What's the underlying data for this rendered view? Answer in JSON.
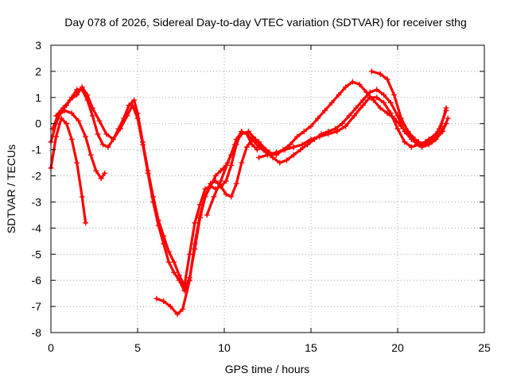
{
  "chart_data": {
    "type": "scatter",
    "title": "Day 078 of 2026, Sidereal Day-to-day VTEC variation (SDTVAR) for receiver sthg",
    "xlabel": "GPS time / hours",
    "ylabel": "SDTVAR / TECUs",
    "xlim": [
      0,
      25
    ],
    "ylim": [
      -8,
      3
    ],
    "xticks": [
      "0",
      "5",
      "10",
      "15",
      "20",
      "25"
    ],
    "yticks": [
      "-8",
      "-7",
      "-6",
      "-5",
      "-4",
      "-3",
      "-2",
      "-1",
      "0",
      "1",
      "2",
      "3"
    ],
    "grid": true,
    "marker_color": "#ff0000",
    "series": [
      {
        "x": [
          0.0,
          0.3,
          0.6,
          0.9,
          1.2,
          1.5,
          1.8,
          2.0
        ],
        "y": [
          -1.7,
          -0.5,
          0.2,
          0.0,
          -0.6,
          -1.5,
          -2.8,
          -3.8
        ]
      },
      {
        "x": [
          0.1,
          0.4,
          0.8,
          1.2,
          1.6,
          2.0,
          2.3,
          2.6,
          2.9,
          3.1
        ],
        "y": [
          -0.2,
          0.3,
          0.5,
          0.4,
          0.1,
          -0.5,
          -1.2,
          -1.8,
          -2.1,
          -1.9
        ]
      },
      {
        "x": [
          0.0,
          0.3,
          0.6,
          0.9,
          1.2,
          1.5,
          1.8,
          2.1,
          2.4,
          2.7,
          3.0,
          3.3,
          3.6,
          3.9,
          4.2,
          4.5,
          4.8,
          5.0,
          5.3,
          5.6,
          5.9,
          6.2,
          6.5,
          6.8,
          7.1,
          7.4,
          7.7,
          8.0,
          8.3,
          8.6,
          8.9,
          9.2,
          9.5,
          9.8,
          10.1,
          10.4,
          10.7,
          11.0,
          11.3,
          11.6,
          11.9
        ],
        "y": [
          -0.7,
          0.0,
          0.5,
          0.7,
          1.0,
          1.3,
          1.3,
          0.9,
          0.3,
          -0.4,
          -0.8,
          -0.9,
          -0.6,
          -0.2,
          0.2,
          0.7,
          0.9,
          0.4,
          -0.7,
          -1.8,
          -2.8,
          -3.7,
          -4.3,
          -4.9,
          -5.3,
          -5.8,
          -6.2,
          -5.0,
          -3.8,
          -3.1,
          -2.5,
          -2.4,
          -2.5,
          -2.4,
          -2.2,
          -1.6,
          -0.8,
          -0.3,
          -0.4,
          -0.8,
          -1.0
        ]
      },
      {
        "x": [
          0.3,
          0.7,
          1.1,
          1.5,
          1.8,
          2.1,
          2.4,
          2.8,
          3.2,
          3.6,
          4.0,
          4.4,
          4.7,
          5.0,
          5.3,
          5.6,
          5.9,
          6.2,
          6.5,
          6.8,
          7.1,
          7.4,
          7.7,
          8.0,
          8.3,
          8.6,
          8.9,
          9.2,
          9.5,
          9.8,
          10.1,
          10.4,
          10.7,
          11.0,
          11.3,
          11.6,
          12.0,
          12.4,
          12.8
        ],
        "y": [
          0.3,
          0.6,
          0.9,
          1.1,
          1.4,
          1.1,
          0.6,
          0.1,
          -0.4,
          -0.6,
          -0.2,
          0.3,
          0.7,
          0.2,
          -0.8,
          -1.9,
          -3.0,
          -3.9,
          -4.6,
          -5.3,
          -5.7,
          -6.0,
          -6.4,
          -5.9,
          -4.8,
          -3.6,
          -2.8,
          -2.3,
          -2.2,
          -2.4,
          -2.7,
          -2.8,
          -2.3,
          -1.5,
          -0.9,
          -0.6,
          -0.7,
          -1.0,
          -1.2
        ]
      },
      {
        "x": [
          6.1,
          6.5,
          6.9,
          7.3,
          7.6,
          8.0,
          8.3,
          8.6,
          8.9,
          9.2,
          9.5,
          9.8,
          10.1,
          10.4,
          10.7,
          11.0,
          11.3,
          11.6,
          12.0,
          12.4,
          12.8,
          13.2,
          13.6,
          14.0,
          14.4,
          14.8,
          15.2,
          15.6,
          16.0,
          16.4,
          16.8,
          17.2,
          17.6,
          18.0,
          18.4,
          18.8,
          19.2,
          19.6,
          20.0,
          20.4,
          20.8,
          21.2,
          21.6,
          22.0,
          22.4,
          22.8
        ],
        "y": [
          -6.7,
          -6.8,
          -7.0,
          -7.3,
          -7.1,
          -6.0,
          -4.6,
          -3.5,
          -2.8,
          -2.4,
          -2.0,
          -1.8,
          -1.6,
          -1.2,
          -0.6,
          -0.3,
          -0.4,
          -0.6,
          -0.9,
          -1.1,
          -1.3,
          -1.5,
          -1.4,
          -1.2,
          -1.0,
          -0.8,
          -0.6,
          -0.4,
          -0.3,
          -0.2,
          0.0,
          0.3,
          0.6,
          0.9,
          1.2,
          1.3,
          1.1,
          0.8,
          0.3,
          -0.3,
          -0.6,
          -0.7,
          -0.8,
          -0.7,
          -0.2,
          0.5
        ]
      },
      {
        "x": [
          9.0,
          9.4,
          9.8,
          10.2,
          10.6,
          11.0,
          11.4,
          11.8,
          12.2,
          12.6,
          13.0,
          13.4,
          13.8,
          14.2,
          14.6,
          15.0,
          15.4,
          15.8,
          16.2,
          16.6,
          17.0,
          17.4,
          17.8,
          18.2,
          18.6,
          19.0,
          19.4,
          19.8,
          20.2,
          20.6,
          21.0,
          21.4,
          21.8,
          22.2,
          22.6,
          22.9
        ],
        "y": [
          -3.5,
          -2.8,
          -2.2,
          -1.5,
          -0.8,
          -0.4,
          -0.3,
          -0.6,
          -0.9,
          -1.1,
          -1.2,
          -1.0,
          -0.8,
          -0.5,
          -0.3,
          -0.1,
          0.2,
          0.5,
          0.8,
          1.1,
          1.4,
          1.6,
          1.5,
          1.2,
          0.9,
          0.6,
          0.4,
          0.2,
          -0.1,
          -0.4,
          -0.7,
          -0.9,
          -0.8,
          -0.6,
          -0.3,
          0.2
        ]
      },
      {
        "x": [
          12.0,
          12.5,
          13.0,
          13.5,
          14.0,
          14.5,
          15.0,
          15.5,
          16.0,
          16.5,
          17.0,
          17.5,
          18.0,
          18.4,
          18.8,
          19.2,
          19.6,
          20.0,
          20.4,
          20.8,
          21.2,
          21.6,
          22.0,
          22.4,
          22.8
        ],
        "y": [
          -1.3,
          -1.2,
          -1.1,
          -1.0,
          -0.9,
          -0.8,
          -0.6,
          -0.5,
          -0.4,
          -0.3,
          -0.1,
          0.3,
          0.7,
          1.0,
          1.0,
          0.8,
          0.4,
          -0.2,
          -0.7,
          -0.9,
          -0.8,
          -0.7,
          -0.6,
          -0.4,
          0.0
        ]
      },
      {
        "x": [
          18.5,
          19.0,
          19.4,
          19.8,
          20.2,
          20.6,
          21.0,
          21.4,
          21.8,
          22.2,
          22.5,
          22.8
        ],
        "y": [
          2.0,
          1.9,
          1.7,
          1.1,
          0.2,
          -0.3,
          -0.6,
          -0.8,
          -0.6,
          -0.4,
          -0.1,
          0.6
        ]
      }
    ]
  }
}
